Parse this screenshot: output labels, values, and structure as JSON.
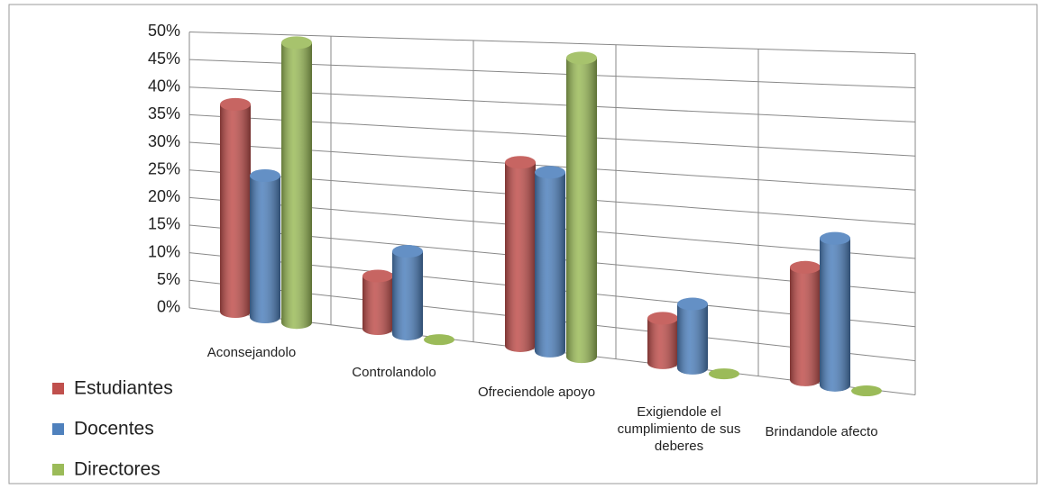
{
  "chart_data": {
    "type": "bar3d",
    "categories": [
      "Aconsejandolo",
      "Controlandolo",
      "Ofreciendole apoyo",
      "Exigiendole el cumplimiento de sus deberes",
      "Brindandole afecto"
    ],
    "series": [
      {
        "name": "Estudiantes",
        "color": "#c0504d",
        "values": [
          37,
          9,
          30,
          7,
          17
        ]
      },
      {
        "name": "Docentes",
        "color": "#4f81bd",
        "values": [
          25,
          14,
          29,
          10,
          22
        ]
      },
      {
        "name": "Directores",
        "color": "#9bbb59",
        "values": [
          49,
          0,
          48,
          0,
          0
        ]
      }
    ],
    "ylim": [
      0,
      50
    ],
    "yticks": [
      {
        "value": 0,
        "label": "0%"
      },
      {
        "value": 5,
        "label": "5%"
      },
      {
        "value": 10,
        "label": "10%"
      },
      {
        "value": 15,
        "label": "15%"
      },
      {
        "value": 20,
        "label": "20%"
      },
      {
        "value": 25,
        "label": "25%"
      },
      {
        "value": 30,
        "label": "30%"
      },
      {
        "value": 35,
        "label": "35%"
      },
      {
        "value": 40,
        "label": "40%"
      },
      {
        "value": 45,
        "label": "45%"
      },
      {
        "value": 50,
        "label": "50%"
      }
    ],
    "grid": true,
    "legend": "bottom-left"
  }
}
